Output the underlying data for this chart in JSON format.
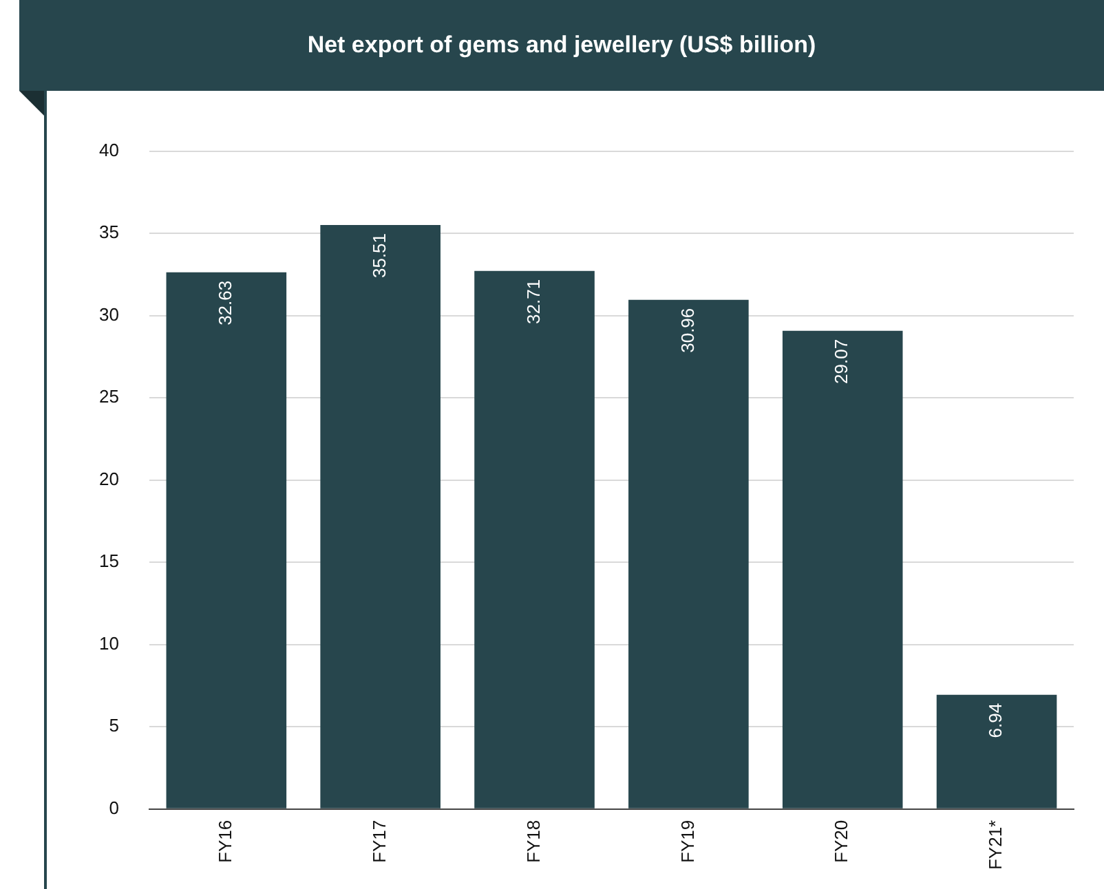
{
  "chart_data": {
    "type": "bar",
    "title": "Net export of gems and jewellery (US$ billion)",
    "categories": [
      "FY16",
      "FY17",
      "FY18",
      "FY19",
      "FY20",
      "FY21*"
    ],
    "values": [
      32.63,
      35.51,
      32.71,
      30.96,
      29.07,
      6.94
    ],
    "color": "#27464d",
    "ylim": [
      0,
      40
    ],
    "yticks": [
      0,
      5,
      10,
      15,
      20,
      25,
      30,
      35,
      40
    ],
    "grid": "y",
    "data_labels": true
  }
}
